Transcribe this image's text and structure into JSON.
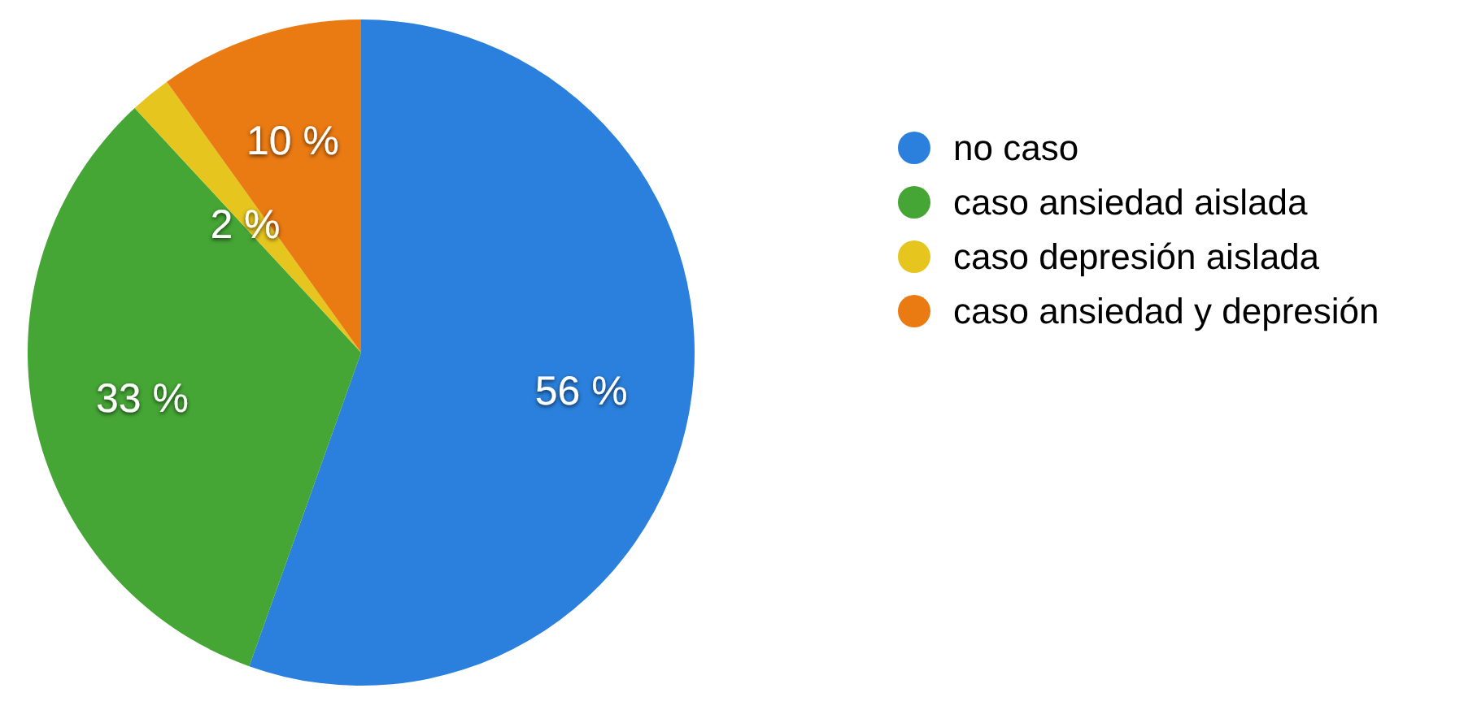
{
  "chart_data": {
    "type": "pie",
    "categories": [
      "no caso",
      "caso ansiedad aislada",
      "caso depresión aislada",
      "caso ansiedad y depresión"
    ],
    "values": [
      56,
      33,
      2,
      10
    ],
    "colors": [
      "#2a80dc",
      "#45a535",
      "#e6c51e",
      "#ea7a12"
    ],
    "value_labels": [
      "56 %",
      "33 %",
      "2 %",
      "10 %"
    ],
    "legend": "right"
  }
}
